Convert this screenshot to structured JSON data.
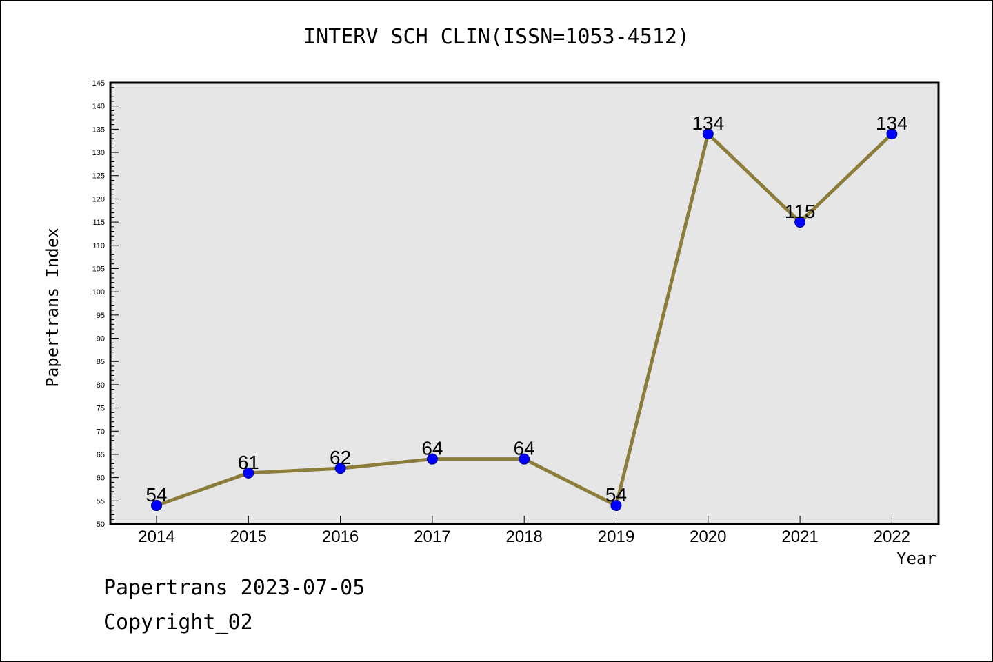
{
  "title": "INTERV SCH CLIN(ISSN=1053-4512)",
  "footer": {
    "line1": "Papertrans 2023-07-05",
    "line2": "Copyright_02"
  },
  "colors": {
    "plot_background": "#e6e6e6",
    "line": "#8b7d3a",
    "marker_fill": "#0000ff",
    "marker_stroke": "#00008b"
  },
  "chart_data": {
    "type": "line",
    "title": "INTERV SCH CLIN(ISSN=1053-4512)",
    "xlabel": "Year",
    "ylabel": "Papertrans Index",
    "categories": [
      "2014",
      "2015",
      "2016",
      "2017",
      "2018",
      "2019",
      "2020",
      "2021",
      "2022"
    ],
    "series": [
      {
        "values": [
          54,
          61,
          62,
          64,
          64,
          54,
          134,
          115,
          134
        ]
      }
    ],
    "data_labels": [
      "54",
      "61",
      "62",
      "64",
      "64",
      "54",
      "134",
      "115",
      "134"
    ],
    "ylim": [
      50,
      145
    ],
    "y_ticks": [
      50,
      55,
      60,
      65,
      70,
      75,
      80,
      85,
      90,
      95,
      100,
      105,
      110,
      115,
      120,
      125,
      130,
      135,
      140,
      145
    ],
    "grid": false,
    "legend": "none"
  }
}
